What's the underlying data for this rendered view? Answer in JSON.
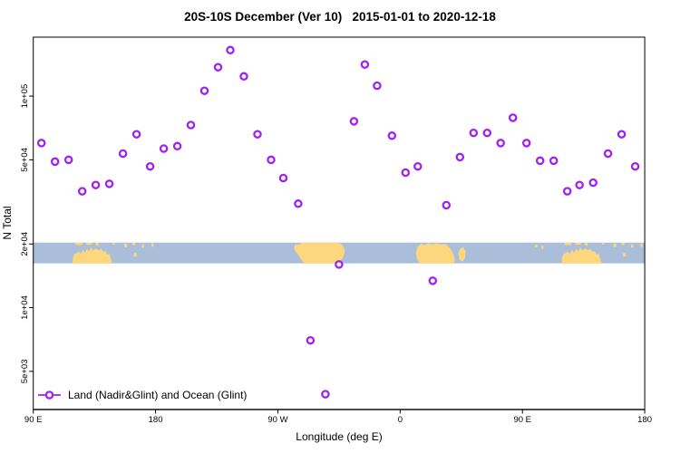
{
  "chart_data": {
    "type": "scatter",
    "title": "20S-10S December (Ver 10)   2015-01-01 to 2020-12-18",
    "xlabel": "Longitude (deg E)",
    "ylabel": "N Total",
    "legend": {
      "label": "Land (Nadir&Glint) and Ocean (Glint)",
      "position": "bottom-left-inside"
    },
    "grid": false,
    "x_axis": {
      "lim": [
        90,
        540
      ],
      "ticks": [
        {
          "lon": 90,
          "label": "90 E"
        },
        {
          "lon": 180,
          "label": "180"
        },
        {
          "lon": 270,
          "label": "90 W"
        },
        {
          "lon": 360,
          "label": "0"
        },
        {
          "lon": 450,
          "label": "90 E"
        },
        {
          "lon": 540,
          "label": "180"
        }
      ]
    },
    "y_axis": {
      "scale": "log",
      "lim": [
        3300,
        190000
      ],
      "ticks": [
        {
          "v": 100000,
          "label": "1e+05"
        },
        {
          "v": 50000,
          "label": "5e+04"
        },
        {
          "v": 20000,
          "label": "2e+04"
        },
        {
          "v": 10000,
          "label": "1e+04"
        },
        {
          "v": 5000,
          "label": "5e+03"
        }
      ]
    },
    "colors": {
      "marker": "#A020F0",
      "ocean": "#AABDD9",
      "land": "#FCD77D",
      "axis": "#000000"
    },
    "map_band": {
      "top_value": 20300,
      "bottom_value": 16200,
      "land_polys": [
        [
          [
            119,
            0.78
          ],
          [
            120,
            0.55
          ],
          [
            122,
            0.5
          ],
          [
            123.5,
            0.42
          ],
          [
            125,
            0.55
          ],
          [
            126.5,
            0.33
          ],
          [
            128,
            0.5
          ],
          [
            129.5,
            0.3
          ],
          [
            131,
            0.42
          ],
          [
            132.5,
            0.22
          ],
          [
            134,
            0.38
          ],
          [
            136,
            0.28
          ],
          [
            138,
            0.36
          ],
          [
            140,
            0.3
          ],
          [
            141.5,
            0.45
          ],
          [
            143,
            0.4
          ],
          [
            144.5,
            0.58
          ],
          [
            146,
            0.52
          ],
          [
            147,
            0.75
          ],
          [
            148,
            0.98
          ],
          [
            148,
            1
          ],
          [
            119,
            1
          ]
        ],
        [
          [
            281.8,
            0.25
          ],
          [
            283,
            0.08
          ],
          [
            285.5,
            0.12
          ],
          [
            287.5,
            0
          ],
          [
            313,
            0
          ],
          [
            316.5,
            0.05
          ],
          [
            318.8,
            0.25
          ],
          [
            319.3,
            0.5
          ],
          [
            317.5,
            0.78
          ],
          [
            314.5,
            0.95
          ],
          [
            312,
            1
          ],
          [
            289.5,
            1
          ],
          [
            287,
            0.8
          ],
          [
            284.5,
            0.55
          ],
          [
            282.5,
            0.38
          ]
        ],
        [
          [
            371.5,
            0.5
          ],
          [
            373,
            0.18
          ],
          [
            375.5,
            0.05
          ],
          [
            378,
            0.12
          ],
          [
            380.5,
            0.02
          ],
          [
            384,
            0.08
          ],
          [
            387,
            0.02
          ],
          [
            390,
            0.1
          ],
          [
            393,
            0.05
          ],
          [
            395.5,
            0.18
          ],
          [
            397.5,
            0.35
          ],
          [
            399.5,
            0.6
          ],
          [
            400.5,
            0.85
          ],
          [
            399.5,
            1
          ],
          [
            374.5,
            1
          ],
          [
            372.3,
            0.78
          ]
        ],
        [
          [
            402.8,
            0.5
          ],
          [
            404.2,
            0.3
          ],
          [
            406.3,
            0.22
          ],
          [
            408.2,
            0.42
          ],
          [
            407.8,
            0.75
          ],
          [
            405.8,
            0.92
          ],
          [
            403.5,
            0.8
          ]
        ],
        [
          [
            479,
            0.78
          ],
          [
            480,
            0.55
          ],
          [
            482,
            0.5
          ],
          [
            483.5,
            0.42
          ],
          [
            485,
            0.55
          ],
          [
            486.5,
            0.33
          ],
          [
            488,
            0.5
          ],
          [
            489.5,
            0.3
          ],
          [
            491,
            0.42
          ],
          [
            492.5,
            0.22
          ],
          [
            494,
            0.38
          ],
          [
            496,
            0.28
          ],
          [
            498,
            0.36
          ],
          [
            500,
            0.3
          ],
          [
            501.5,
            0.45
          ],
          [
            503,
            0.4
          ],
          [
            504.5,
            0.58
          ],
          [
            506,
            0.52
          ],
          [
            507,
            0.75
          ],
          [
            508,
            0.98
          ],
          [
            508,
            1
          ],
          [
            479,
            1
          ]
        ]
      ],
      "land_rects": [
        [
          121,
          126,
          0,
          0.12
        ],
        [
          129,
          133,
          0,
          0.1
        ],
        [
          136,
          138,
          0,
          0.15
        ],
        [
          148.5,
          150,
          0,
          0.1
        ],
        [
          157,
          159,
          0.05,
          0.22
        ],
        [
          163,
          165,
          0,
          0.12
        ],
        [
          170,
          171.5,
          0.08,
          0.25
        ],
        [
          177,
          178.5,
          0.03,
          0.2
        ],
        [
          164,
          166,
          0.5,
          0.68
        ],
        [
          459,
          461,
          0.1,
          0.22
        ],
        [
          464,
          465.5,
          0.15,
          0.3
        ],
        [
          481,
          486,
          0,
          0.12
        ],
        [
          489,
          493,
          0,
          0.1
        ],
        [
          496,
          498,
          0,
          0.15
        ],
        [
          508.5,
          510,
          0,
          0.1
        ],
        [
          517,
          519,
          0.05,
          0.22
        ],
        [
          523,
          525,
          0,
          0.12
        ],
        [
          530,
          531.5,
          0.08,
          0.25
        ],
        [
          537,
          538.5,
          0.03,
          0.2
        ],
        [
          524,
          526,
          0.5,
          0.68
        ]
      ]
    },
    "series": [
      {
        "name": "Land (Nadir&Glint) and Ocean (Glint)",
        "points": [
          [
            96,
            60000
          ],
          [
            106,
            49000
          ],
          [
            116,
            50000
          ],
          [
            126,
            35500
          ],
          [
            136,
            38000
          ],
          [
            146,
            38500
          ],
          [
            156,
            53500
          ],
          [
            166,
            66000
          ],
          [
            176,
            46500
          ],
          [
            186,
            56500
          ],
          [
            196,
            58000
          ],
          [
            206,
            73000
          ],
          [
            216,
            106000
          ],
          [
            226,
            137000
          ],
          [
            235,
            165000
          ],
          [
            245,
            124000
          ],
          [
            255,
            66000
          ],
          [
            265,
            50000
          ],
          [
            274,
            41000
          ],
          [
            285,
            31000
          ],
          [
            294,
            7000
          ],
          [
            305,
            3900
          ],
          [
            315,
            16000
          ],
          [
            326,
            76000
          ],
          [
            334,
            141000
          ],
          [
            343,
            112000
          ],
          [
            354,
            65000
          ],
          [
            364,
            43500
          ],
          [
            373,
            46500
          ],
          [
            384,
            13400
          ],
          [
            394,
            30500
          ],
          [
            404,
            51500
          ],
          [
            414,
            67000
          ],
          [
            424,
            67000
          ],
          [
            434,
            60000
          ],
          [
            443,
            79000
          ],
          [
            453,
            60000
          ],
          [
            463,
            49500
          ],
          [
            473,
            49500
          ],
          [
            483,
            35500
          ],
          [
            492,
            38000
          ],
          [
            502,
            39000
          ],
          [
            513,
            53500
          ],
          [
            523,
            66000
          ],
          [
            533,
            46500
          ]
        ]
      }
    ]
  }
}
